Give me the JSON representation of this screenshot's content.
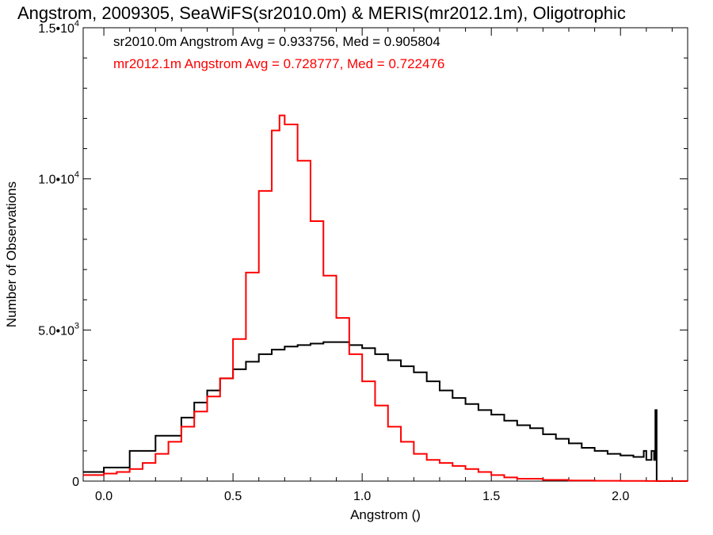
{
  "chart_data": {
    "type": "line",
    "step": true,
    "title": "Angstrom, 2009305, SeaWiFS(sr2010.0m) & MERIS(mr2012.1m), Oligotrophic",
    "xlabel": "Angstrom ()",
    "ylabel": "Number of Observations",
    "xlim": [
      -0.08,
      2.26
    ],
    "ylim": [
      0,
      15000
    ],
    "grid": false,
    "legend_position": "top-left",
    "x_ticks": [
      0.0,
      0.5,
      1.0,
      1.5,
      2.0
    ],
    "x_tick_labels": [
      "0.0",
      "0.5",
      "1.0",
      "1.5",
      "2.0"
    ],
    "y_ticks": [
      0,
      5000,
      10000,
      15000
    ],
    "y_tick_labels": [
      {
        "mantissa": "0",
        "exp": ""
      },
      {
        "mantissa": "5.0•10",
        "exp": "3"
      },
      {
        "mantissa": "1.0•10",
        "exp": "4"
      },
      {
        "mantissa": "1.5•10",
        "exp": "4"
      }
    ],
    "series": [
      {
        "name": "sr2010.0m",
        "color": "#000000",
        "legend_text": "sr2010.0m Angstrom Avg = 0.933756, Med = 0.905804",
        "x": [
          -0.08,
          0.0,
          0.1,
          0.2,
          0.3,
          0.35,
          0.4,
          0.45,
          0.5,
          0.55,
          0.6,
          0.65,
          0.7,
          0.75,
          0.8,
          0.85,
          0.9,
          0.95,
          1.0,
          1.05,
          1.1,
          1.15,
          1.2,
          1.25,
          1.3,
          1.35,
          1.4,
          1.45,
          1.5,
          1.55,
          1.6,
          1.65,
          1.7,
          1.75,
          1.8,
          1.85,
          1.9,
          1.95,
          2.0,
          2.05,
          2.08,
          2.09,
          2.1,
          2.12,
          2.13,
          2.135,
          2.14,
          2.145
        ],
        "values": [
          300,
          450,
          1000,
          1500,
          2100,
          2600,
          3000,
          3400,
          3700,
          3950,
          4200,
          4350,
          4450,
          4500,
          4550,
          4600,
          4600,
          4500,
          4400,
          4200,
          4000,
          3800,
          3600,
          3300,
          3000,
          2750,
          2550,
          2350,
          2200,
          2000,
          1850,
          1750,
          1550,
          1400,
          1250,
          1100,
          1000,
          900,
          850,
          800,
          800,
          1000,
          700,
          1000,
          700,
          2350,
          0,
          0
        ]
      },
      {
        "name": "mr2012.1m",
        "color": "#ff0000",
        "legend_text": "mr2012.1m Angstrom Avg = 0.728777, Med = 0.722476",
        "x": [
          -0.08,
          0.0,
          0.05,
          0.1,
          0.15,
          0.2,
          0.25,
          0.3,
          0.35,
          0.4,
          0.45,
          0.5,
          0.55,
          0.6,
          0.65,
          0.68,
          0.7,
          0.75,
          0.8,
          0.85,
          0.9,
          0.95,
          1.0,
          1.05,
          1.1,
          1.15,
          1.2,
          1.25,
          1.3,
          1.35,
          1.4,
          1.45,
          1.5,
          1.55,
          1.6,
          1.7,
          1.8,
          1.9,
          2.0,
          2.1,
          2.26
        ],
        "values": [
          200,
          250,
          300,
          400,
          600,
          900,
          1300,
          1800,
          2300,
          2800,
          3400,
          4700,
          6900,
          9600,
          11600,
          12100,
          11800,
          10600,
          8600,
          6800,
          5400,
          4200,
          3300,
          2500,
          1800,
          1300,
          900,
          700,
          600,
          500,
          400,
          300,
          200,
          120,
          80,
          40,
          20,
          10,
          5,
          2,
          0
        ]
      }
    ]
  }
}
